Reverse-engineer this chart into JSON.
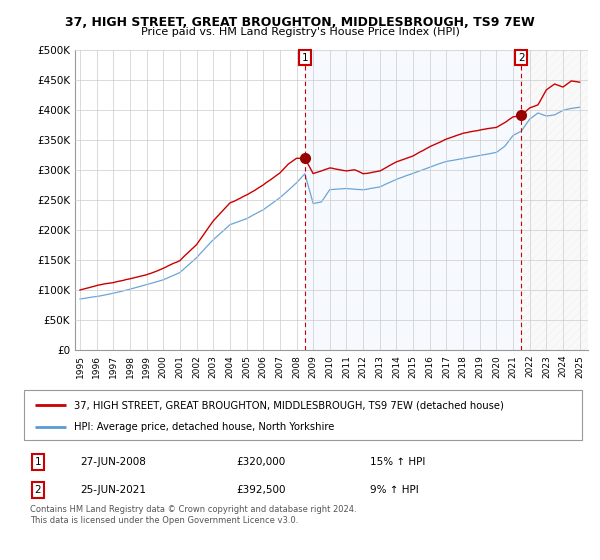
{
  "title": "37, HIGH STREET, GREAT BROUGHTON, MIDDLESBROUGH, TS9 7EW",
  "subtitle": "Price paid vs. HM Land Registry's House Price Index (HPI)",
  "ylabel_ticks": [
    "£0",
    "£50K",
    "£100K",
    "£150K",
    "£200K",
    "£250K",
    "£300K",
    "£350K",
    "£400K",
    "£450K",
    "£500K"
  ],
  "ytick_vals": [
    0,
    50000,
    100000,
    150000,
    200000,
    250000,
    300000,
    350000,
    400000,
    450000,
    500000
  ],
  "ylim": [
    0,
    500000
  ],
  "xlim_start": 1994.7,
  "xlim_end": 2025.5,
  "hpi_color": "#5b9bd5",
  "price_color": "#cc0000",
  "marker_color": "#990000",
  "vline_color": "#cc0000",
  "grid_color": "#cccccc",
  "shade_color": "#ddeeff",
  "background_color": "#ffffff",
  "legend_label_red": "37, HIGH STREET, GREAT BROUGHTON, MIDDLESBROUGH, TS9 7EW (detached house)",
  "legend_label_blue": "HPI: Average price, detached house, North Yorkshire",
  "transaction1_date": "27-JUN-2008",
  "transaction1_price": "£320,000",
  "transaction1_hpi": "15% ↑ HPI",
  "transaction1_year": 2008.5,
  "transaction1_value": 320000,
  "transaction2_date": "25-JUN-2021",
  "transaction2_price": "£392,500",
  "transaction2_hpi": "9% ↑ HPI",
  "transaction2_year": 2021.5,
  "transaction2_value": 392500,
  "footer": "Contains HM Land Registry data © Crown copyright and database right 2024.\nThis data is licensed under the Open Government Licence v3.0."
}
